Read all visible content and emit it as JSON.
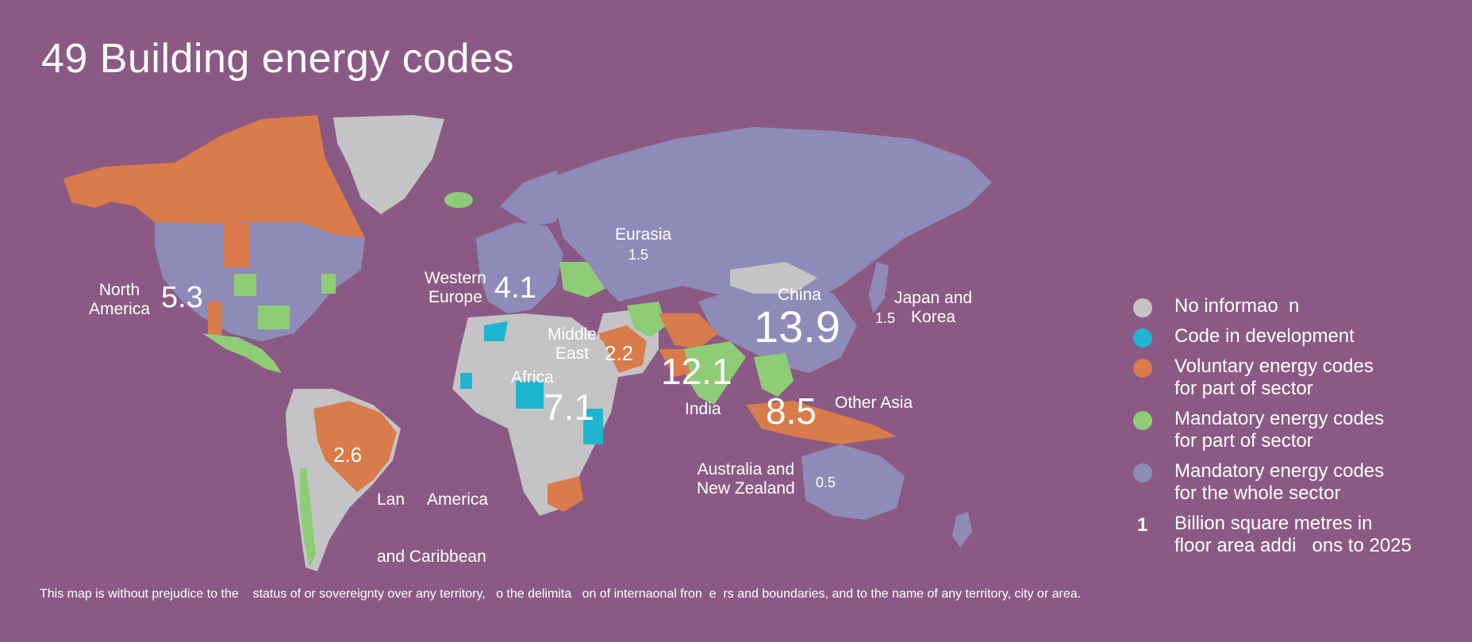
{
  "title": "49 Building energy codes",
  "legend": {
    "items": [
      {
        "label_line1": "No informao  n",
        "label_line2": "",
        "color": "#c4c4c6"
      },
      {
        "label_line1": "Code in development",
        "label_line2": "",
        "color": "#1fb5d1"
      },
      {
        "label_line1": "Voluntary energy codes",
        "label_line2": "for part of sector",
        "color": "#d97b4a"
      },
      {
        "label_line1": "Mandatory energy codes",
        "label_line2": "for part of sector",
        "color": "#8fcc76"
      },
      {
        "label_line1": "Mandatory energy codes",
        "label_line2": "for the whole sector",
        "color": "#8e8bb8"
      }
    ],
    "unit_number": "1",
    "unit_line1": "Billion square metres in",
    "unit_line2": "floor area addi   ons to 2025"
  },
  "regions": {
    "north_america": {
      "name_line1": "North",
      "name_line2": "America",
      "value": "5.3"
    },
    "western_europe": {
      "name_line1": "Western",
      "name_line2": "Europe",
      "value": "4.1"
    },
    "eurasia": {
      "name_line1": "Eurasia",
      "name_line2": "",
      "value": "1.5"
    },
    "china": {
      "name_line1": "China",
      "name_line2": "",
      "value": "13.9"
    },
    "japan_korea": {
      "name_line1": "Japan and",
      "name_line2": "Korea",
      "value": "1.5"
    },
    "middle_east": {
      "name_line1": "Middle",
      "name_line2": "East",
      "value": "2.2"
    },
    "india": {
      "name_line1": "India",
      "name_line2": "",
      "value": "12.1"
    },
    "africa": {
      "name_line1": "Africa",
      "name_line2": "",
      "value": "7.1"
    },
    "other_asia": {
      "name_line1": "Other Asia",
      "name_line2": "",
      "value": "8.5"
    },
    "latin_america": {
      "name_line1": "Lan     America",
      "name_line2": "and Caribbean",
      "value": "2.6"
    },
    "australia_nz": {
      "name_line1": "Australia and",
      "name_line2": "New Zealand",
      "value": "0.5"
    }
  },
  "colors": {
    "background": "#8b5a84",
    "no_info": "#c4c4c6",
    "development": "#1fb5d1",
    "voluntary": "#d97b4a",
    "mandatory_part": "#8fcc76",
    "mandatory_whole": "#8e8bb8"
  },
  "footnote": "This map is without prejudice to the    status of or sovereignty over any territory,   o the delimita   on of internaonal fron  e  rs and boundaries, and to the name of any territory, city or area."
}
